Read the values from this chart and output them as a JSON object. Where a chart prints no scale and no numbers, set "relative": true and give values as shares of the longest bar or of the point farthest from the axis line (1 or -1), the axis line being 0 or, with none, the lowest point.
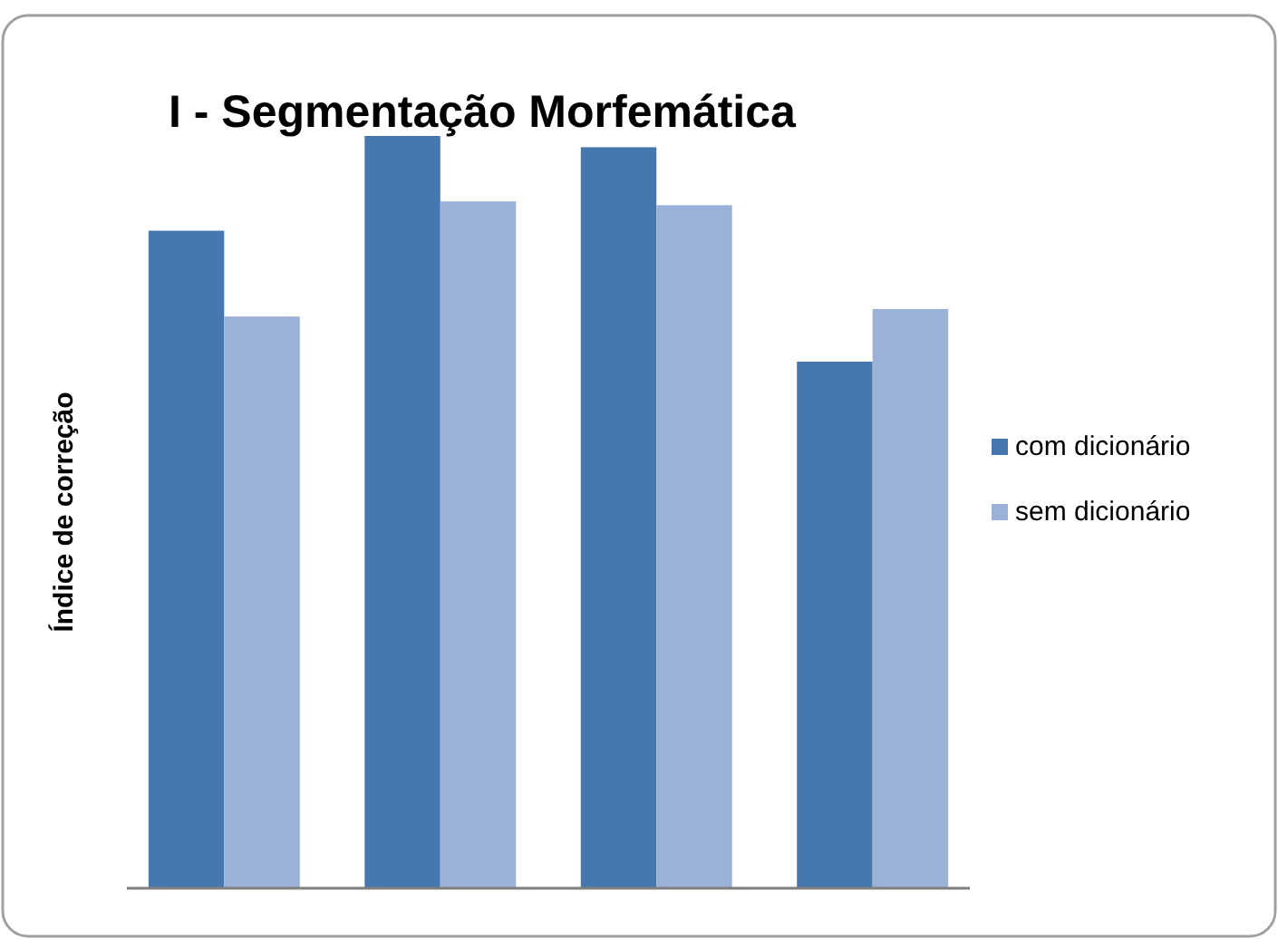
{
  "chart_data": {
    "type": "bar",
    "title": "I - Segmentação Morfemática",
    "ylabel": "Índice de correção",
    "relative": true,
    "categories": [
      null,
      null,
      null,
      null
    ],
    "series": [
      {
        "name": "com dicionário",
        "color": "#4677ae",
        "values": [
          0.874,
          1,
          0.985,
          0.7
        ]
      },
      {
        "name": "sem dicionário",
        "color": "#9cb1d8",
        "values": [
          0.76,
          0.913,
          0.908,
          0.77
        ]
      }
    ],
    "legend": "right"
  }
}
